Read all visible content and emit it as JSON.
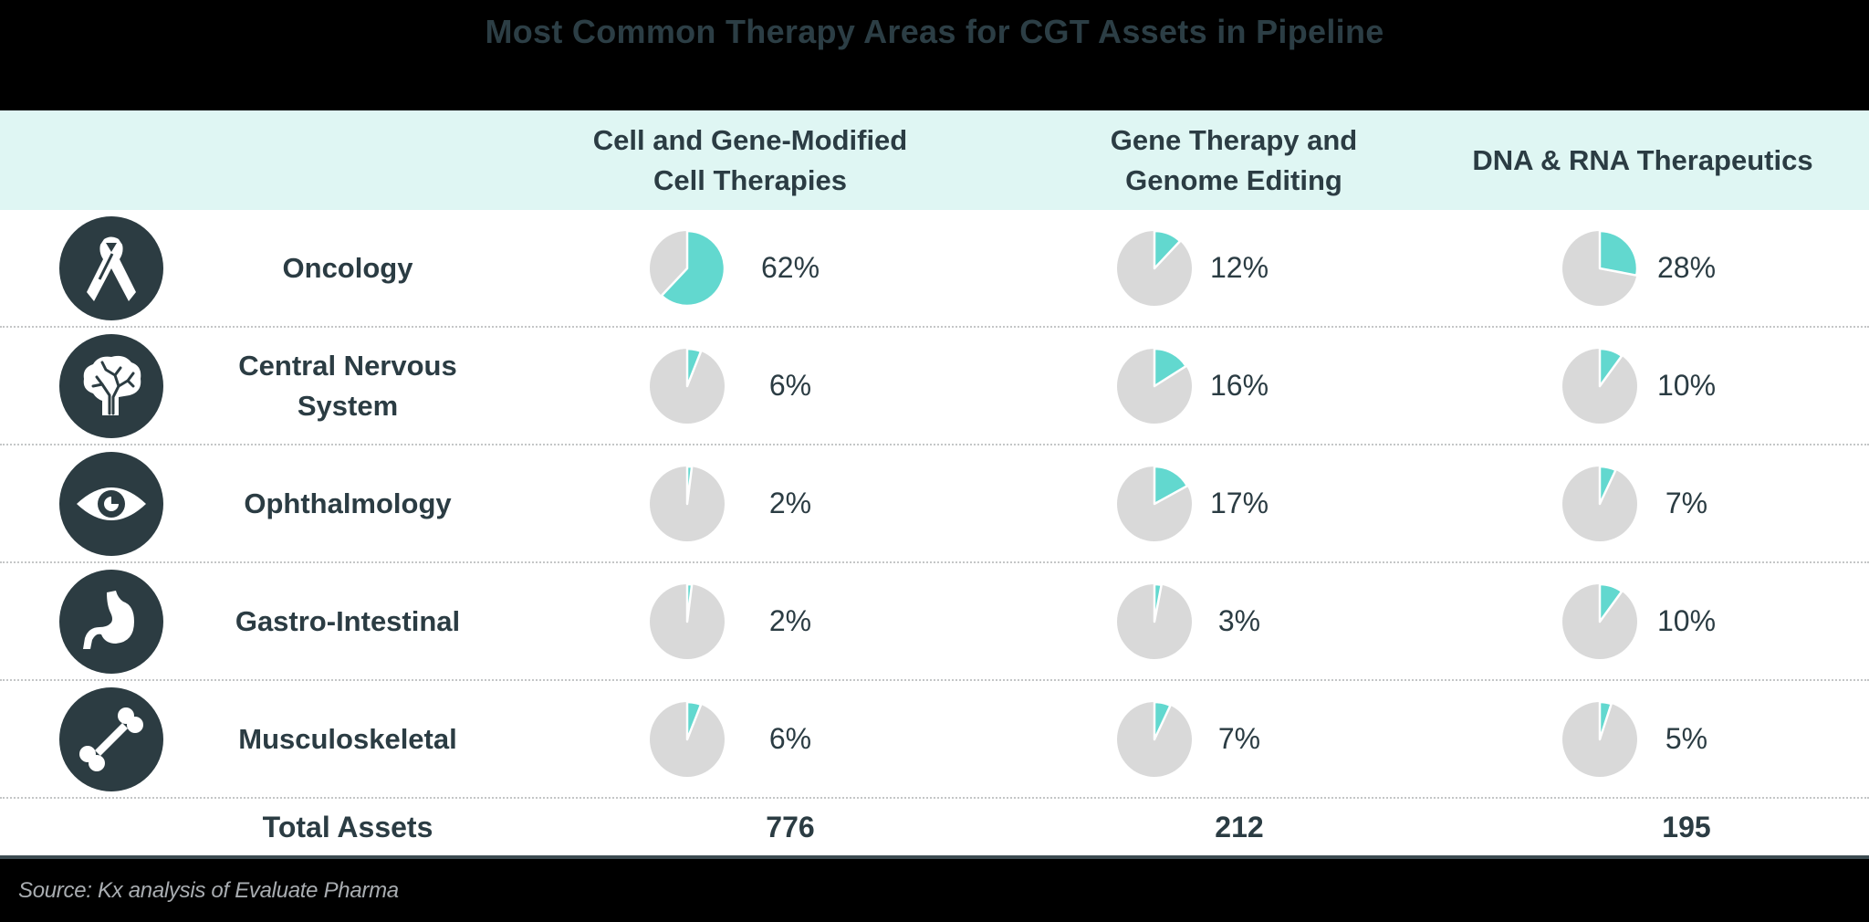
{
  "title": "Most Common Therapy Areas for CGT Assets in Pipeline",
  "columns": [
    {
      "label": "Cell and Gene-Modified\nCell Therapies"
    },
    {
      "label": "Gene Therapy and\nGenome Editing"
    },
    {
      "label": "DNA & RNA Therapeutics"
    }
  ],
  "rows": [
    {
      "label": "Oncology",
      "icon": "ribbon-icon",
      "values": [
        "62%",
        "12%",
        "28%"
      ]
    },
    {
      "label": "Central Nervous\nSystem",
      "icon": "brain-icon",
      "values": [
        "6%",
        "16%",
        "10%"
      ]
    },
    {
      "label": "Ophthalmology",
      "icon": "eye-icon",
      "values": [
        "2%",
        "17%",
        "7%"
      ]
    },
    {
      "label": "Gastro-Intestinal",
      "icon": "stomach-icon",
      "values": [
        "2%",
        "3%",
        "10%"
      ]
    },
    {
      "label": "Musculoskeletal",
      "icon": "bone-icon",
      "values": [
        "6%",
        "7%",
        "5%"
      ]
    }
  ],
  "totals": {
    "label": "Total Assets",
    "values": [
      "776",
      "212",
      "195"
    ]
  },
  "source": "Source: Kx analysis of Evaluate Pharma",
  "colors": {
    "accent": "#62d8cf",
    "remainder": "#d9d9d9",
    "header_bg": "#dff6f3",
    "text": "#2b3c43",
    "icon_bg": "#2c3c42"
  },
  "chart_data": {
    "type": "table",
    "title": "Most Common Therapy Areas for CGT Assets in Pipeline",
    "subtype": "pie-matrix",
    "columns": [
      "Cell and Gene-Modified Cell Therapies",
      "Gene Therapy and Genome Editing",
      "DNA & RNA Therapeutics"
    ],
    "categories": [
      "Oncology",
      "Central Nervous System",
      "Ophthalmology",
      "Gastro-Intestinal",
      "Musculoskeletal"
    ],
    "series": [
      {
        "name": "Cell and Gene-Modified Cell Therapies",
        "values": [
          62,
          6,
          2,
          2,
          6
        ]
      },
      {
        "name": "Gene Therapy and Genome Editing",
        "values": [
          12,
          16,
          17,
          3,
          7
        ]
      },
      {
        "name": "DNA & RNA Therapeutics",
        "values": [
          28,
          10,
          7,
          10,
          5
        ]
      }
    ],
    "unit": "%",
    "totals": {
      "Cell and Gene-Modified Cell Therapies": 776,
      "Gene Therapy and Genome Editing": 212,
      "DNA & RNA Therapeutics": 195
    },
    "total_label": "Total Assets",
    "source": "Source: Kx analysis of Evaluate Pharma"
  }
}
